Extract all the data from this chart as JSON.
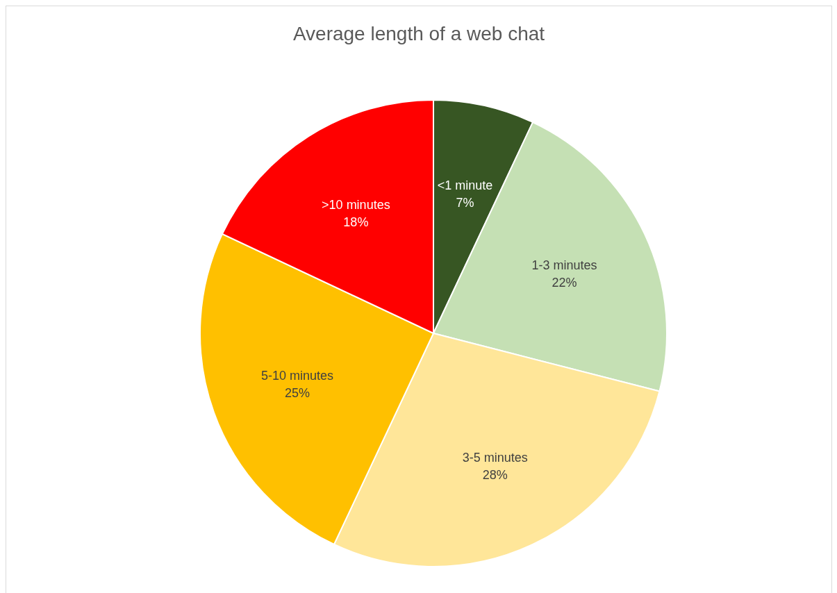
{
  "chart_data": {
    "type": "pie",
    "title": "Average length of a web chat",
    "categories": [
      "<1 minute",
      "1-3 minutes",
      "3-5 minutes",
      "5-10 minutes",
      ">10 minutes"
    ],
    "values": [
      7,
      22,
      28,
      25,
      18
    ],
    "value_labels": [
      "7%",
      "22%",
      "28%",
      "25%",
      "18%"
    ],
    "colors": [
      "#375623",
      "#c5e0b4",
      "#ffe699",
      "#ffc000",
      "#ff0000"
    ],
    "legend": false
  }
}
